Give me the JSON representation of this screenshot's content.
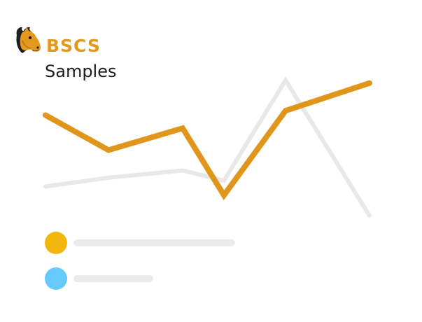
{
  "header": {
    "brand": "BSCS",
    "title": "Samples"
  },
  "logo": {
    "icon": "horse-head-mascot-icon"
  },
  "colors": {
    "brand": "#e39a1c",
    "primary_series": "#e0961a",
    "secondary_series": "#e8e8e8",
    "placeholder_bar": "#ebebeb",
    "dot_gold": "#f3b60c",
    "dot_blue": "#66c9fb"
  },
  "chart_data": {
    "type": "line",
    "x": [
      0,
      1,
      2,
      3,
      4,
      5
    ],
    "ylim": [
      0,
      100
    ],
    "series": [
      {
        "values": [
          20,
          26,
          31,
          24,
          93,
          0
        ]
      },
      {
        "values": [
          69,
          45,
          60,
          14,
          72,
          91
        ]
      }
    ],
    "grid": false
  },
  "legend": [
    {
      "icon": "gold-dot-icon",
      "color": "#f3b60c",
      "placeholder_fill": 0.67
    },
    {
      "icon": "blue-dot-icon",
      "color": "#66c9fb",
      "placeholder_fill": 0.33
    }
  ]
}
